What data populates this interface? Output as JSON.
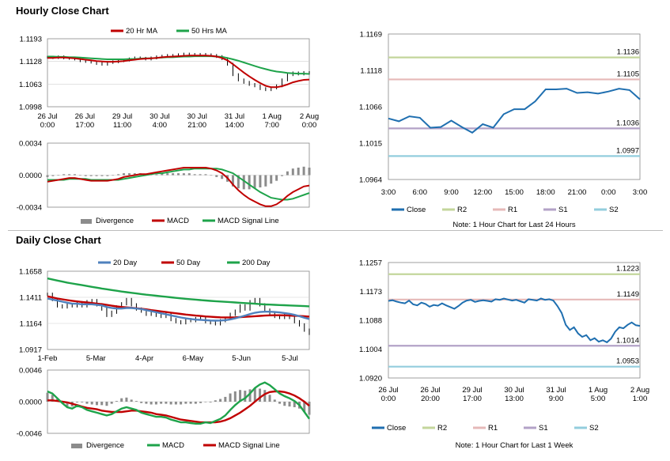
{
  "sections": {
    "hourly_title": "Hourly Close Chart",
    "daily_title": "Daily Close Chart"
  },
  "chart_data": [
    {
      "id": "hourly_price",
      "type": "line",
      "title": "Hourly Close Chart",
      "ylim": [
        1.0998,
        1.1193
      ],
      "y_ticks": [
        "1.1193",
        "1.1128",
        "1.1063",
        "1.0998"
      ],
      "x_ticks": [
        "26 Jul\n0:00",
        "26 Jul\n17:00",
        "29 Jul\n11:00",
        "30 Jul\n4:00",
        "30 Jul\n21:00",
        "31 Jul\n14:00",
        "1 Aug\n7:00",
        "2 Aug\n0:00"
      ],
      "legend": [
        "20 Hr MA",
        "50 Hrs MA"
      ],
      "colors": {
        "close": "#000000",
        "ma20": "#c00000",
        "ma50": "#1ea34a"
      },
      "series": [
        {
          "name": "Close",
          "values": [
            1.114,
            1.1139,
            1.1141,
            1.1138,
            1.1137,
            1.1135,
            1.113,
            1.1128,
            1.1126,
            1.1122,
            1.112,
            1.1125,
            1.1127,
            1.113,
            1.1132,
            1.1135,
            1.1138,
            1.1137,
            1.1135,
            1.1138,
            1.1141,
            1.1143,
            1.1145,
            1.1144,
            1.1147,
            1.1149,
            1.1148,
            1.1146,
            1.1148,
            1.1147,
            1.1145,
            1.1142,
            1.1136,
            1.112,
            1.109,
            1.1075,
            1.1068,
            1.1062,
            1.1058,
            1.105,
            1.1047,
            1.1052,
            1.1058,
            1.1075,
            1.109,
            1.1095,
            1.1092,
            1.1096,
            1.1094
          ]
        },
        {
          "name": "20 Hr MA",
          "values": [
            1.1138,
            1.1138,
            1.1139,
            1.1139,
            1.1138,
            1.1137,
            1.1135,
            1.1133,
            1.1131,
            1.1129,
            1.1128,
            1.1127,
            1.1127,
            1.1128,
            1.1129,
            1.1131,
            1.1133,
            1.1135,
            1.1136,
            1.1137,
            1.1138,
            1.114,
            1.1141,
            1.1142,
            1.1143,
            1.1144,
            1.1145,
            1.1145,
            1.1145,
            1.1145,
            1.1144,
            1.1142,
            1.1138,
            1.1131,
            1.112,
            1.1108,
            1.1096,
            1.1085,
            1.1075,
            1.1066,
            1.1058,
            1.1054,
            1.1054,
            1.1057,
            1.1062,
            1.1068,
            1.1072,
            1.1075,
            1.1076
          ]
        },
        {
          "name": "50 Hrs MA",
          "values": [
            1.1142,
            1.1142,
            1.1141,
            1.1141,
            1.114,
            1.114,
            1.1139,
            1.1138,
            1.1137,
            1.1136,
            1.1135,
            1.1134,
            1.1134,
            1.1134,
            1.1134,
            1.1135,
            1.1135,
            1.1136,
            1.1137,
            1.1137,
            1.1138,
            1.1139,
            1.114,
            1.114,
            1.1141,
            1.1142,
            1.1142,
            1.1143,
            1.1143,
            1.1143,
            1.1143,
            1.1142,
            1.1141,
            1.1138,
            1.1134,
            1.113,
            1.1125,
            1.112,
            1.1115,
            1.111,
            1.1106,
            1.1102,
            1.1099,
            1.1097,
            1.1095,
            1.1094,
            1.1093,
            1.1093,
            1.1092
          ]
        }
      ]
    },
    {
      "id": "hourly_macd",
      "type": "bar",
      "ylim": [
        -0.0034,
        0.0034
      ],
      "y_ticks": [
        "0.0034",
        "0.0000",
        "-0.0034"
      ],
      "legend": [
        "Divergence",
        "MACD",
        "MACD Signal Line"
      ],
      "colors": {
        "divergence": "#8c8c8c",
        "macd": "#c00000",
        "signal": "#1ea34a"
      },
      "series": [
        {
          "name": "MACD",
          "values": [
            -0.0007,
            -0.0006,
            -0.0005,
            -0.0004,
            -0.0003,
            -0.0003,
            -0.0004,
            -0.0005,
            -0.0006,
            -0.0006,
            -0.0006,
            -0.0006,
            -0.0005,
            -0.0004,
            -0.0002,
            -0.0001,
            0.0,
            0.0001,
            0.0001,
            0.0002,
            0.0003,
            0.0004,
            0.0005,
            0.0006,
            0.0007,
            0.0008,
            0.0008,
            0.0008,
            0.0008,
            0.0008,
            0.0007,
            0.0005,
            0.0002,
            -0.0003,
            -0.001,
            -0.0016,
            -0.0021,
            -0.0025,
            -0.0028,
            -0.0031,
            -0.0033,
            -0.0033,
            -0.0031,
            -0.0027,
            -0.0022,
            -0.0018,
            -0.0015,
            -0.0012,
            -0.0011
          ]
        },
        {
          "name": "MACD Signal Line",
          "values": [
            -0.0005,
            -0.0005,
            -0.0005,
            -0.0005,
            -0.0004,
            -0.0004,
            -0.0004,
            -0.0004,
            -0.0005,
            -0.0005,
            -0.0005,
            -0.0005,
            -0.0005,
            -0.0005,
            -0.0004,
            -0.0003,
            -0.0002,
            -0.0001,
            0.0,
            0.0001,
            0.0002,
            0.0002,
            0.0003,
            0.0004,
            0.0005,
            0.0006,
            0.0006,
            0.0007,
            0.0007,
            0.0007,
            0.0007,
            0.0007,
            0.0006,
            0.0004,
            0.0002,
            -0.0002,
            -0.0006,
            -0.001,
            -0.0014,
            -0.0018,
            -0.0021,
            -0.0024,
            -0.0025,
            -0.0026,
            -0.0026,
            -0.0025,
            -0.0023,
            -0.0021,
            -0.0019
          ]
        }
      ]
    },
    {
      "id": "hourly_pivot",
      "type": "line",
      "ylim": [
        1.0964,
        1.1169
      ],
      "y_ticks": [
        "1.1169",
        "1.1118",
        "1.1066",
        "1.1015",
        "1.0964"
      ],
      "x_ticks": [
        "3:00",
        "6:00",
        "9:00",
        "12:00",
        "15:00",
        "18:00",
        "21:00",
        "0:00",
        "3:00"
      ],
      "levels": [
        {
          "name": "R2",
          "value": 1.1136,
          "label": "1.1136",
          "color": "#c3d69b"
        },
        {
          "name": "R1",
          "value": 1.1105,
          "label": "1.1105",
          "color": "#e6b9b8"
        },
        {
          "name": "S1",
          "value": 1.1036,
          "label": "1.1036",
          "color": "#b3a2c7"
        },
        {
          "name": "S2",
          "value": 1.0997,
          "label": "1.0997",
          "color": "#93cddd"
        }
      ],
      "close_color": "#1f6fb0",
      "series": [
        {
          "name": "Close",
          "x": [
            0,
            1,
            2,
            3,
            4,
            5,
            6,
            7,
            8,
            9,
            10,
            11,
            12,
            13,
            14,
            15,
            16,
            17,
            18,
            19,
            20,
            21,
            22,
            23,
            24
          ],
          "values": [
            1.105,
            1.1046,
            1.1053,
            1.1051,
            1.1037,
            1.1038,
            1.1047,
            1.1038,
            1.103,
            1.1042,
            1.1037,
            1.1056,
            1.1063,
            1.1063,
            1.1074,
            1.1091,
            1.1091,
            1.1092,
            1.1086,
            1.1087,
            1.1085,
            1.1088,
            1.1092,
            1.109,
            1.1077
          ]
        }
      ],
      "legend": [
        "Close",
        "R2",
        "R1",
        "S1",
        "S2"
      ],
      "note": "Note: 1 Hour Chart for Last 24 Hours"
    },
    {
      "id": "daily_price",
      "type": "line",
      "title": "Daily Close Chart",
      "ylim": [
        1.0917,
        1.1658
      ],
      "y_ticks": [
        "1.1658",
        "1.1411",
        "1.1164",
        "1.0917"
      ],
      "x_ticks": [
        "1-Feb",
        "5-Mar",
        "4-Apr",
        "6-May",
        "5-Jun",
        "5-Jul"
      ],
      "legend": [
        "20 Day",
        "50 Day",
        "200 Day"
      ],
      "colors": {
        "close": "#000000",
        "ma20": "#4f81bd",
        "ma50": "#c00000",
        "ma200": "#1ea34a"
      },
      "series": [
        {
          "name": "Close",
          "values": [
            1.144,
            1.139,
            1.133,
            1.132,
            1.134,
            1.133,
            1.136,
            1.133,
            1.137,
            1.138,
            1.134,
            1.13,
            1.124,
            1.127,
            1.132,
            1.135,
            1.139,
            1.134,
            1.13,
            1.128,
            1.125,
            1.127,
            1.124,
            1.123,
            1.125,
            1.12,
            1.118,
            1.117,
            1.12,
            1.119,
            1.121,
            1.122,
            1.118,
            1.117,
            1.116,
            1.119,
            1.121,
            1.125,
            1.128,
            1.133,
            1.13,
            1.137,
            1.139,
            1.134,
            1.129,
            1.125,
            1.123,
            1.122,
            1.124,
            1.122,
            1.118,
            1.115,
            1.11,
            1.107
          ]
        },
        {
          "name": "20 Day",
          "values": [
            1.14,
            1.139,
            1.138,
            1.137,
            1.136,
            1.135,
            1.135,
            1.1345,
            1.1345,
            1.1345,
            1.134,
            1.1335,
            1.132,
            1.131,
            1.1305,
            1.1305,
            1.131,
            1.131,
            1.1305,
            1.13,
            1.129,
            1.128,
            1.127,
            1.126,
            1.125,
            1.124,
            1.123,
            1.122,
            1.1212,
            1.1206,
            1.12,
            1.1198,
            1.1195,
            1.1192,
            1.119,
            1.1192,
            1.1195,
            1.1202,
            1.1212,
            1.1225,
            1.1238,
            1.1252,
            1.1265,
            1.1272,
            1.1275,
            1.1275,
            1.1272,
            1.1268,
            1.1262,
            1.1255,
            1.1245,
            1.1232,
            1.1218,
            1.1205
          ]
        },
        {
          "name": "50 Day",
          "values": [
            1.142,
            1.141,
            1.14,
            1.1392,
            1.1385,
            1.1378,
            1.1372,
            1.1367,
            1.1362,
            1.1357,
            1.1352,
            1.1347,
            1.134,
            1.1332,
            1.1325,
            1.132,
            1.1316,
            1.1312,
            1.1308,
            1.1303,
            1.1297,
            1.129,
            1.1284,
            1.1278,
            1.1272,
            1.1266,
            1.126,
            1.1254,
            1.1248,
            1.1243,
            1.1238,
            1.1234,
            1.123,
            1.1227,
            1.1224,
            1.1222,
            1.1221,
            1.1221,
            1.1222,
            1.1224,
            1.1226,
            1.1229,
            1.1232,
            1.1235,
            1.1238,
            1.124,
            1.1241,
            1.1241,
            1.124,
            1.1238,
            1.1236,
            1.1234,
            1.1231,
            1.1228
          ]
        },
        {
          "name": "200 Day",
          "values": [
            1.159,
            1.158,
            1.157,
            1.156,
            1.155,
            1.1542,
            1.1534,
            1.1526,
            1.1518,
            1.151,
            1.1502,
            1.1494,
            1.1487,
            1.148,
            1.1473,
            1.1466,
            1.146,
            1.1454,
            1.1448,
            1.1442,
            1.1436,
            1.1431,
            1.1426,
            1.1421,
            1.1416,
            1.1411,
            1.1406,
            1.1401,
            1.1397,
            1.1393,
            1.1389,
            1.1385,
            1.1381,
            1.1377,
            1.1374,
            1.1371,
            1.1368,
            1.1365,
            1.1362,
            1.1359,
            1.1356,
            1.1353,
            1.135,
            1.1347,
            1.1344,
            1.1342,
            1.134,
            1.1338,
            1.1336,
            1.1334,
            1.1332,
            1.133,
            1.1328,
            1.1326
          ]
        }
      ]
    },
    {
      "id": "daily_macd",
      "type": "bar",
      "ylim": [
        -0.0046,
        0.0046
      ],
      "y_ticks": [
        "0.0046",
        "0.0000",
        "-0.0046"
      ],
      "legend": [
        "Divergence",
        "MACD",
        "MACD Signal Line"
      ],
      "colors": {
        "divergence": "#8c8c8c",
        "macd": "#1ea34a",
        "signal": "#c00000"
      },
      "series": [
        {
          "name": "MACD",
          "values": [
            0.0015,
            0.0012,
            0.0005,
            -0.0002,
            -0.0008,
            -0.001,
            -0.0006,
            -0.0008,
            -0.0012,
            -0.0014,
            -0.0016,
            -0.0018,
            -0.002,
            -0.0018,
            -0.0014,
            -0.001,
            -0.0008,
            -0.001,
            -0.0012,
            -0.0016,
            -0.0018,
            -0.002,
            -0.0022,
            -0.0022,
            -0.0023,
            -0.0026,
            -0.0028,
            -0.003,
            -0.003,
            -0.0031,
            -0.0032,
            -0.0032,
            -0.003,
            -0.0031,
            -0.0028,
            -0.0025,
            -0.002,
            -0.0012,
            -0.0005,
            0.0001,
            0.0005,
            0.0012,
            0.002,
            0.0025,
            0.0028,
            0.0024,
            0.0018,
            0.0012,
            0.0008,
            0.0005,
            0.0001,
            -0.0005,
            -0.0015,
            -0.0025
          ]
        },
        {
          "name": "MACD Signal Line",
          "values": [
            0.0002,
            0.0002,
            0.0001,
            0.0,
            -0.0001,
            -0.0003,
            -0.0005,
            -0.0007,
            -0.0009,
            -0.001,
            -0.0011,
            -0.0013,
            -0.0014,
            -0.0015,
            -0.0015,
            -0.0015,
            -0.0014,
            -0.0013,
            -0.0013,
            -0.0014,
            -0.0015,
            -0.0016,
            -0.0018,
            -0.0019,
            -0.002,
            -0.0022,
            -0.0024,
            -0.0026,
            -0.0027,
            -0.0028,
            -0.0029,
            -0.003,
            -0.003,
            -0.003,
            -0.003,
            -0.0029,
            -0.0027,
            -0.0024,
            -0.002,
            -0.0016,
            -0.0011,
            -0.0006,
            0.0,
            0.0006,
            0.0011,
            0.0014,
            0.0015,
            0.0015,
            0.0014,
            0.0012,
            0.0009,
            0.0005,
            0.0,
            -0.0006
          ]
        }
      ]
    },
    {
      "id": "daily_pivot",
      "type": "line",
      "ylim": [
        1.092,
        1.1257
      ],
      "y_ticks": [
        "1.1257",
        "1.1173",
        "1.1088",
        "1.1004",
        "1.0920"
      ],
      "x_ticks": [
        "26 Jul\n0:00",
        "26 Jul\n20:00",
        "29 Jul\n17:00",
        "30 Jul\n13:00",
        "31 Jul\n9:00",
        "1 Aug\n5:00",
        "2 Aug\n1:00"
      ],
      "levels": [
        {
          "name": "R2",
          "value": 1.1223,
          "label": "1.1223",
          "color": "#c3d69b"
        },
        {
          "name": "R1",
          "value": 1.1149,
          "label": "1.1149",
          "color": "#e6b9b8"
        },
        {
          "name": "S1",
          "value": 1.1014,
          "label": "1.1014",
          "color": "#b3a2c7"
        },
        {
          "name": "S2",
          "value": 1.0953,
          "label": "1.0953",
          "color": "#93cddd"
        }
      ],
      "close_color": "#1f6fb0",
      "series": [
        {
          "name": "Close",
          "values": [
            1.1145,
            1.1147,
            1.1143,
            1.114,
            1.1138,
            1.1146,
            1.1135,
            1.1132,
            1.114,
            1.1136,
            1.1128,
            1.1133,
            1.1131,
            1.1138,
            1.1132,
            1.1127,
            1.1122,
            1.113,
            1.114,
            1.1146,
            1.1148,
            1.1142,
            1.1145,
            1.1147,
            1.1145,
            1.1143,
            1.115,
            1.1148,
            1.1152,
            1.1149,
            1.1146,
            1.1148,
            1.1144,
            1.114,
            1.115,
            1.1148,
            1.1146,
            1.1152,
            1.1148,
            1.115,
            1.1146,
            1.113,
            1.111,
            1.1075,
            1.106,
            1.1068,
            1.105,
            1.104,
            1.1045,
            1.103,
            1.1036,
            1.1026,
            1.103,
            1.1024,
            1.1035,
            1.1055,
            1.1068,
            1.1065,
            1.1075,
            1.1082,
            1.1074,
            1.1072
          ]
        }
      ],
      "legend": [
        "Close",
        "R2",
        "R1",
        "S1",
        "S2"
      ],
      "note": "Note: 1 Hour Chart for Last 1 Week"
    }
  ]
}
